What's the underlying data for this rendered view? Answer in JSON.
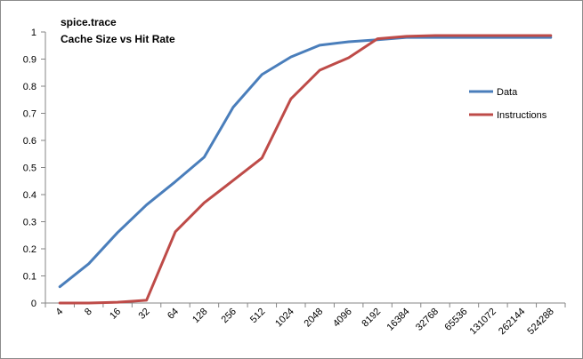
{
  "chart_data": {
    "type": "line",
    "title_lines": [
      "spice.trace",
      "Cache Size vs Hit Rate"
    ],
    "xlabel": "",
    "ylabel": "",
    "categories": [
      "4",
      "8",
      "16",
      "32",
      "64",
      "128",
      "256",
      "512",
      "1024",
      "2048",
      "4096",
      "8192",
      "16384",
      "32768",
      "65536",
      "131072",
      "262144",
      "524288"
    ],
    "yticks": [
      "0",
      "0.1",
      "0.2",
      "0.3",
      "0.4",
      "0.5",
      "0.6",
      "0.7",
      "0.8",
      "0.9",
      "1"
    ],
    "ylim": [
      0,
      1
    ],
    "grid": false,
    "legend_position": "right",
    "series": [
      {
        "name": "Data",
        "color": "#4a7ebb",
        "values": [
          0.06,
          0.145,
          0.26,
          0.362,
          0.448,
          0.538,
          0.722,
          0.843,
          0.908,
          0.951,
          0.964,
          0.971,
          0.98,
          0.98,
          0.98,
          0.98,
          0.98,
          0.98
        ]
      },
      {
        "name": "Instructions",
        "color": "#be4b48",
        "values": [
          0.0,
          0.0,
          0.003,
          0.01,
          0.263,
          0.37,
          0.452,
          0.535,
          0.753,
          0.859,
          0.905,
          0.975,
          0.984,
          0.987,
          0.987,
          0.987,
          0.987,
          0.987
        ]
      }
    ]
  }
}
